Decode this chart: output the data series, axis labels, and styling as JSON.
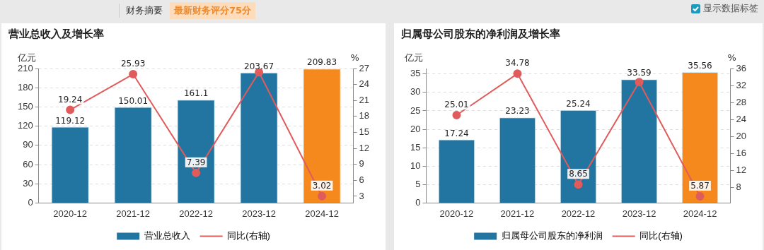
{
  "chart_data": [
    {
      "type": "bar",
      "title": "营业总收入及增长率",
      "ylabel": "亿元",
      "y2label": "%",
      "categories": [
        "2020-12",
        "2021-12",
        "2022-12",
        "2023-12",
        "2024-12"
      ],
      "series": [
        {
          "name": "营业总收入",
          "color": "#2275a0",
          "colors": [
            "#2275a0",
            "#2275a0",
            "#2275a0",
            "#2275a0",
            "#f5891d"
          ],
          "values": [
            119.12,
            150.01,
            161.1,
            203.67,
            209.83
          ],
          "value_labels": [
            "119.12",
            "150.01",
            "161.1",
            "203.67",
            "209.83"
          ]
        },
        {
          "name": "同比(右轴)",
          "type": "line",
          "axis": "y2",
          "color": "#e05c5c",
          "values": [
            19.24,
            25.93,
            7.39,
            26.3,
            3.02
          ],
          "value_labels": [
            "19.24",
            "25.93",
            "7.39",
            null,
            "3.02"
          ]
        }
      ],
      "ylim": [
        0,
        210
      ],
      "yticks": [
        0,
        30,
        60,
        90,
        120,
        150,
        180,
        210
      ],
      "y2lim": [
        1.75,
        27
      ],
      "y2ticks": [
        3,
        6,
        9,
        12,
        15,
        18,
        21,
        24,
        27
      ],
      "annotations": [
        "财务摘要",
        "最新财务评分75分",
        "显示数据标签"
      ],
      "grid": "y",
      "legend": "bottom",
      "marker": "circle",
      "line_style": "solid"
    },
    {
      "type": "bar",
      "title": "归属母公司股东的净利润及增长率",
      "ylabel": "亿元",
      "y2label": "%",
      "categories": [
        "2020-12",
        "2021-12",
        "2022-12",
        "2023-12",
        "2024-12"
      ],
      "series": [
        {
          "name": "归属母公司股东的净利润",
          "color": "#2275a0",
          "colors": [
            "#2275a0",
            "#2275a0",
            "#2275a0",
            "#2275a0",
            "#f5891d"
          ],
          "values": [
            17.24,
            23.23,
            25.24,
            33.59,
            35.56
          ],
          "value_labels": [
            "17.24",
            "23.23",
            "25.24",
            "33.59",
            "35.56"
          ]
        },
        {
          "name": "同比(右轴)",
          "type": "line",
          "axis": "y2",
          "color": "#e05c5c",
          "values": [
            25.01,
            34.78,
            8.65,
            32.8,
            5.87
          ],
          "value_labels": [
            "25.01",
            "34.78",
            "8.65",
            null,
            "5.87"
          ]
        }
      ],
      "ylim": [
        0,
        36.5
      ],
      "yticks": [
        0,
        5,
        10,
        15,
        20,
        25,
        30,
        35
      ],
      "y2lim": [
        4.3,
        36
      ],
      "y2ticks": [
        8,
        12,
        16,
        20,
        24,
        28,
        32,
        36
      ],
      "grid": "y",
      "legend": "bottom",
      "marker": "circle",
      "line_style": "solid"
    }
  ]
}
